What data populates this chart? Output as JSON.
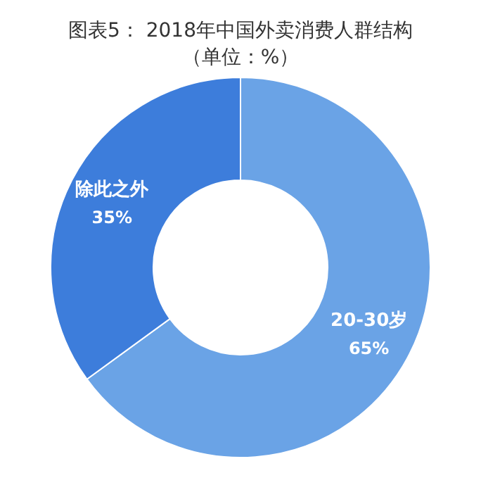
{
  "chart_data": {
    "type": "donut",
    "title": "图表5： 2018年中国外卖消费人群结构",
    "subtitle": "（单位：%）",
    "categories": [
      "20-30岁",
      "除此之外"
    ],
    "values": [
      65,
      35
    ],
    "colors": [
      "#6aa3e6",
      "#3d7ddb"
    ],
    "value_labels": [
      "65%",
      "35%"
    ],
    "legend": false
  }
}
